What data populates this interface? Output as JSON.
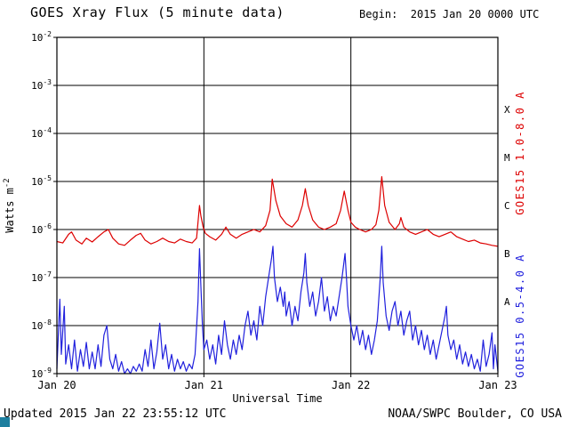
{
  "header": {
    "title": "GOES Xray Flux (5 minute data)",
    "begin_label": "Begin:  2015 Jan 20 0000 UTC"
  },
  "footer": {
    "updated": "Updated 2015 Jan 22 23:55:12 UTC",
    "credit": "NOAA/SWPC Boulder, CO USA"
  },
  "colors": {
    "long_channel": "#dd0000",
    "short_channel": "#2020dd",
    "axis": "#000000",
    "background": "#ffffff",
    "corner_marker": "#1d7f9f"
  },
  "chart_data": {
    "type": "line",
    "title": "GOES Xray Flux (5 minute data)",
    "xlabel": "Universal Time",
    "ylabel_base": "Watts m",
    "ylabel_exp": "-2",
    "x_axis": {
      "unit": "days since 2015 Jan 20 0000 UTC",
      "range_days": [
        0,
        3
      ],
      "ticks": [
        {
          "day": 0,
          "label": "Jan 20"
        },
        {
          "day": 1,
          "label": "Jan 21"
        },
        {
          "day": 2,
          "label": "Jan 22"
        },
        {
          "day": 3,
          "label": "Jan 23"
        }
      ]
    },
    "y_axis": {
      "scale": "log10",
      "range_exp": [
        -9,
        -2
      ],
      "tick_exponents": [
        -2,
        -3,
        -4,
        -5,
        -6,
        -7,
        -8,
        -9
      ],
      "tick_mantissa": "10"
    },
    "grid": {
      "horizontal_exponents": [
        -3,
        -4,
        -5,
        -6,
        -7,
        -8
      ],
      "vertical_days": [
        1,
        2
      ]
    },
    "flare_classes": [
      {
        "label": "X",
        "exp_mid": -3.5
      },
      {
        "label": "M",
        "exp_mid": -4.5
      },
      {
        "label": "C",
        "exp_mid": -5.5
      },
      {
        "label": "B",
        "exp_mid": -6.5
      },
      {
        "label": "A",
        "exp_mid": -7.5
      }
    ],
    "series": [
      {
        "name": "GOES15 1.0-8.0 A",
        "color": "#dd0000",
        "label_side": "right-upper",
        "points_day_log10flux": [
          [
            0.0,
            -6.25
          ],
          [
            0.04,
            -6.28
          ],
          [
            0.08,
            -6.1
          ],
          [
            0.1,
            -6.05
          ],
          [
            0.13,
            -6.22
          ],
          [
            0.17,
            -6.3
          ],
          [
            0.2,
            -6.18
          ],
          [
            0.24,
            -6.26
          ],
          [
            0.28,
            -6.15
          ],
          [
            0.32,
            -6.05
          ],
          [
            0.35,
            -6.0
          ],
          [
            0.38,
            -6.18
          ],
          [
            0.42,
            -6.3
          ],
          [
            0.46,
            -6.33
          ],
          [
            0.5,
            -6.22
          ],
          [
            0.54,
            -6.12
          ],
          [
            0.57,
            -6.08
          ],
          [
            0.6,
            -6.22
          ],
          [
            0.64,
            -6.3
          ],
          [
            0.68,
            -6.25
          ],
          [
            0.72,
            -6.18
          ],
          [
            0.76,
            -6.25
          ],
          [
            0.8,
            -6.28
          ],
          [
            0.84,
            -6.2
          ],
          [
            0.88,
            -6.25
          ],
          [
            0.92,
            -6.28
          ],
          [
            0.95,
            -6.18
          ],
          [
            0.96,
            -5.85
          ],
          [
            0.97,
            -5.5
          ],
          [
            0.98,
            -5.72
          ],
          [
            0.995,
            -5.95
          ],
          [
            1.01,
            -6.08
          ],
          [
            1.04,
            -6.15
          ],
          [
            1.08,
            -6.22
          ],
          [
            1.12,
            -6.1
          ],
          [
            1.15,
            -5.95
          ],
          [
            1.18,
            -6.1
          ],
          [
            1.22,
            -6.18
          ],
          [
            1.26,
            -6.1
          ],
          [
            1.3,
            -6.05
          ],
          [
            1.34,
            -6.0
          ],
          [
            1.38,
            -6.05
          ],
          [
            1.42,
            -5.92
          ],
          [
            1.45,
            -5.6
          ],
          [
            1.465,
            -4.95
          ],
          [
            1.49,
            -5.4
          ],
          [
            1.52,
            -5.72
          ],
          [
            1.56,
            -5.88
          ],
          [
            1.6,
            -5.95
          ],
          [
            1.64,
            -5.8
          ],
          [
            1.67,
            -5.5
          ],
          [
            1.69,
            -5.15
          ],
          [
            1.71,
            -5.5
          ],
          [
            1.74,
            -5.8
          ],
          [
            1.78,
            -5.95
          ],
          [
            1.82,
            -6.0
          ],
          [
            1.86,
            -5.95
          ],
          [
            1.9,
            -5.88
          ],
          [
            1.93,
            -5.6
          ],
          [
            1.955,
            -5.2
          ],
          [
            1.98,
            -5.6
          ],
          [
            2.0,
            -5.85
          ],
          [
            2.03,
            -5.95
          ],
          [
            2.06,
            -6.0
          ],
          [
            2.1,
            -6.05
          ],
          [
            2.14,
            -6.0
          ],
          [
            2.17,
            -5.9
          ],
          [
            2.19,
            -5.6
          ],
          [
            2.21,
            -4.9
          ],
          [
            2.23,
            -5.5
          ],
          [
            2.26,
            -5.85
          ],
          [
            2.3,
            -6.0
          ],
          [
            2.33,
            -5.88
          ],
          [
            2.34,
            -5.75
          ],
          [
            2.36,
            -5.95
          ],
          [
            2.4,
            -6.05
          ],
          [
            2.44,
            -6.1
          ],
          [
            2.48,
            -6.05
          ],
          [
            2.52,
            -6.0
          ],
          [
            2.56,
            -6.1
          ],
          [
            2.6,
            -6.15
          ],
          [
            2.64,
            -6.1
          ],
          [
            2.68,
            -6.05
          ],
          [
            2.72,
            -6.15
          ],
          [
            2.76,
            -6.2
          ],
          [
            2.8,
            -6.25
          ],
          [
            2.84,
            -6.22
          ],
          [
            2.88,
            -6.28
          ],
          [
            2.92,
            -6.3
          ],
          [
            2.96,
            -6.33
          ],
          [
            3.0,
            -6.35
          ]
        ]
      },
      {
        "name": "GOES15 0.5-4.0 A",
        "color": "#2020dd",
        "label_side": "right-lower",
        "points_day_log10flux": [
          [
            0.0,
            -8.9
          ],
          [
            0.02,
            -7.45
          ],
          [
            0.03,
            -8.6
          ],
          [
            0.05,
            -7.6
          ],
          [
            0.06,
            -8.8
          ],
          [
            0.08,
            -8.4
          ],
          [
            0.1,
            -8.9
          ],
          [
            0.12,
            -8.3
          ],
          [
            0.14,
            -8.95
          ],
          [
            0.16,
            -8.5
          ],
          [
            0.18,
            -8.85
          ],
          [
            0.2,
            -8.35
          ],
          [
            0.22,
            -8.9
          ],
          [
            0.24,
            -8.55
          ],
          [
            0.26,
            -8.9
          ],
          [
            0.28,
            -8.4
          ],
          [
            0.3,
            -8.85
          ],
          [
            0.32,
            -8.2
          ],
          [
            0.34,
            -8.0
          ],
          [
            0.36,
            -8.7
          ],
          [
            0.38,
            -8.9
          ],
          [
            0.4,
            -8.6
          ],
          [
            0.42,
            -8.95
          ],
          [
            0.44,
            -8.75
          ],
          [
            0.46,
            -9.0
          ],
          [
            0.48,
            -8.9
          ],
          [
            0.5,
            -9.0
          ],
          [
            0.52,
            -8.85
          ],
          [
            0.54,
            -8.95
          ],
          [
            0.56,
            -8.8
          ],
          [
            0.58,
            -8.95
          ],
          [
            0.6,
            -8.5
          ],
          [
            0.62,
            -8.85
          ],
          [
            0.64,
            -8.3
          ],
          [
            0.66,
            -8.9
          ],
          [
            0.68,
            -8.55
          ],
          [
            0.7,
            -7.95
          ],
          [
            0.72,
            -8.7
          ],
          [
            0.74,
            -8.4
          ],
          [
            0.76,
            -8.9
          ],
          [
            0.78,
            -8.6
          ],
          [
            0.8,
            -8.95
          ],
          [
            0.82,
            -8.7
          ],
          [
            0.84,
            -8.9
          ],
          [
            0.86,
            -8.75
          ],
          [
            0.88,
            -8.95
          ],
          [
            0.9,
            -8.8
          ],
          [
            0.92,
            -8.9
          ],
          [
            0.94,
            -8.6
          ],
          [
            0.96,
            -7.5
          ],
          [
            0.97,
            -6.4
          ],
          [
            0.98,
            -7.2
          ],
          [
            0.99,
            -8.0
          ],
          [
            1.0,
            -8.5
          ],
          [
            1.02,
            -8.3
          ],
          [
            1.04,
            -8.7
          ],
          [
            1.06,
            -8.4
          ],
          [
            1.08,
            -8.8
          ],
          [
            1.1,
            -8.2
          ],
          [
            1.12,
            -8.6
          ],
          [
            1.14,
            -7.9
          ],
          [
            1.16,
            -8.4
          ],
          [
            1.18,
            -8.7
          ],
          [
            1.2,
            -8.3
          ],
          [
            1.22,
            -8.6
          ],
          [
            1.24,
            -8.2
          ],
          [
            1.26,
            -8.5
          ],
          [
            1.28,
            -8.0
          ],
          [
            1.3,
            -7.7
          ],
          [
            1.32,
            -8.2
          ],
          [
            1.34,
            -7.9
          ],
          [
            1.36,
            -8.3
          ],
          [
            1.38,
            -7.6
          ],
          [
            1.4,
            -8.0
          ],
          [
            1.42,
            -7.4
          ],
          [
            1.44,
            -7.0
          ],
          [
            1.46,
            -6.6
          ],
          [
            1.47,
            -6.35
          ],
          [
            1.48,
            -7.0
          ],
          [
            1.5,
            -7.5
          ],
          [
            1.52,
            -7.2
          ],
          [
            1.54,
            -7.6
          ],
          [
            1.55,
            -7.3
          ],
          [
            1.56,
            -7.8
          ],
          [
            1.58,
            -7.5
          ],
          [
            1.6,
            -8.0
          ],
          [
            1.62,
            -7.6
          ],
          [
            1.64,
            -7.9
          ],
          [
            1.66,
            -7.3
          ],
          [
            1.68,
            -6.9
          ],
          [
            1.69,
            -6.5
          ],
          [
            1.7,
            -7.1
          ],
          [
            1.72,
            -7.6
          ],
          [
            1.74,
            -7.3
          ],
          [
            1.76,
            -7.8
          ],
          [
            1.78,
            -7.5
          ],
          [
            1.8,
            -7.0
          ],
          [
            1.82,
            -7.7
          ],
          [
            1.84,
            -7.4
          ],
          [
            1.86,
            -7.9
          ],
          [
            1.88,
            -7.6
          ],
          [
            1.9,
            -7.8
          ],
          [
            1.92,
            -7.4
          ],
          [
            1.94,
            -7.0
          ],
          [
            1.96,
            -6.5
          ],
          [
            1.97,
            -7.0
          ],
          [
            1.98,
            -7.6
          ],
          [
            2.0,
            -8.0
          ],
          [
            2.02,
            -8.3
          ],
          [
            2.04,
            -8.0
          ],
          [
            2.06,
            -8.4
          ],
          [
            2.08,
            -8.1
          ],
          [
            2.1,
            -8.5
          ],
          [
            2.12,
            -8.2
          ],
          [
            2.14,
            -8.6
          ],
          [
            2.16,
            -8.3
          ],
          [
            2.18,
            -7.9
          ],
          [
            2.2,
            -7.0
          ],
          [
            2.21,
            -6.35
          ],
          [
            2.22,
            -7.1
          ],
          [
            2.24,
            -7.8
          ],
          [
            2.26,
            -8.1
          ],
          [
            2.28,
            -7.7
          ],
          [
            2.3,
            -7.5
          ],
          [
            2.32,
            -8.0
          ],
          [
            2.34,
            -7.7
          ],
          [
            2.36,
            -8.2
          ],
          [
            2.38,
            -7.9
          ],
          [
            2.4,
            -7.7
          ],
          [
            2.42,
            -8.3
          ],
          [
            2.44,
            -8.0
          ],
          [
            2.46,
            -8.4
          ],
          [
            2.48,
            -8.1
          ],
          [
            2.5,
            -8.5
          ],
          [
            2.52,
            -8.2
          ],
          [
            2.54,
            -8.6
          ],
          [
            2.56,
            -8.3
          ],
          [
            2.58,
            -8.7
          ],
          [
            2.6,
            -8.4
          ],
          [
            2.62,
            -8.1
          ],
          [
            2.64,
            -7.8
          ],
          [
            2.65,
            -7.6
          ],
          [
            2.66,
            -8.2
          ],
          [
            2.68,
            -8.5
          ],
          [
            2.7,
            -8.3
          ],
          [
            2.72,
            -8.7
          ],
          [
            2.74,
            -8.4
          ],
          [
            2.76,
            -8.8
          ],
          [
            2.78,
            -8.55
          ],
          [
            2.8,
            -8.85
          ],
          [
            2.82,
            -8.6
          ],
          [
            2.84,
            -8.9
          ],
          [
            2.86,
            -8.7
          ],
          [
            2.88,
            -8.95
          ],
          [
            2.9,
            -8.3
          ],
          [
            2.92,
            -8.85
          ],
          [
            2.94,
            -8.6
          ],
          [
            2.96,
            -8.15
          ],
          [
            2.97,
            -8.9
          ],
          [
            2.98,
            -8.4
          ],
          [
            3.0,
            -8.95
          ]
        ]
      }
    ]
  }
}
